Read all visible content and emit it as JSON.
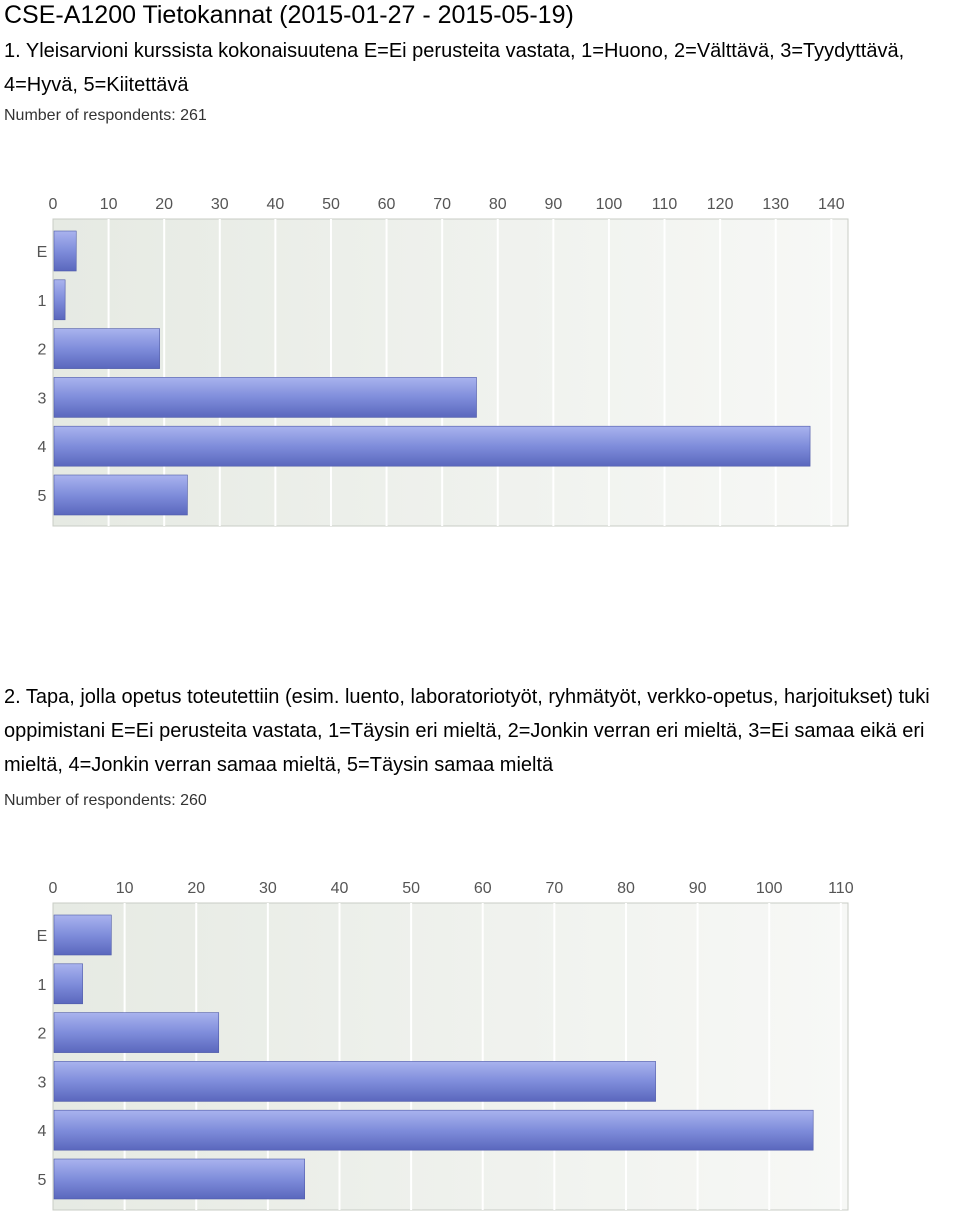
{
  "page_title": "CSE-A1200 Tietokannat (2015-01-27 - 2015-05-19)",
  "questions": [
    {
      "text": "1. Yleisarvioni kurssista kokonaisuutena E=Ei perusteita vastata, 1=Huono, 2=Välttävä, 3=Tyydyttävä, 4=Hyvä, 5=Kiitettävä",
      "respondents": "Number of respondents: 261"
    },
    {
      "text": "2. Tapa, jolla opetus toteutettiin (esim. luento, laboratoriotyöt, ryhmätyöt, verkko-opetus, harjoitukset) tuki oppimistani E=Ei perusteita vastata, 1=Täysin eri mieltä, 2=Jonkin verran eri mieltä, 3=Ei samaa eikä eri mieltä, 4=Jonkin verran samaa mieltä, 5=Täysin samaa mieltä",
      "respondents": "Number of respondents: 260"
    }
  ],
  "colors": {
    "bar_top": "#a9b3ee",
    "bar_mid": "#7f8ddb",
    "bar_bottom": "#5a67bd",
    "plot_bg_left": "#e6eae3",
    "plot_bg_right": "#f7f8f6",
    "grid": "#ffffff",
    "axis_text": "#555555"
  },
  "chart_data": [
    {
      "type": "bar",
      "orientation": "horizontal",
      "categories": [
        "E",
        "1",
        "2",
        "3",
        "4",
        "5"
      ],
      "values": [
        4,
        2,
        19,
        76,
        136,
        24
      ],
      "xlim": [
        0,
        143
      ],
      "x_ticks": [
        0,
        10,
        20,
        30,
        40,
        50,
        60,
        70,
        80,
        90,
        100,
        110,
        120,
        130,
        140
      ],
      "x_tick_labels": [
        "0",
        "10",
        "20",
        "30",
        "40",
        "50",
        "60",
        "70",
        "80",
        "90",
        "100",
        "110",
        "120",
        "130",
        "140"
      ],
      "xaxis_position": "top",
      "grid": true
    },
    {
      "type": "bar",
      "orientation": "horizontal",
      "categories": [
        "E",
        "1",
        "2",
        "3",
        "4",
        "5"
      ],
      "values": [
        8,
        4,
        23,
        84,
        106,
        35
      ],
      "xlim": [
        0,
        111
      ],
      "x_ticks": [
        0,
        10,
        20,
        30,
        40,
        50,
        60,
        70,
        80,
        90,
        100,
        110
      ],
      "x_tick_labels": [
        "0",
        "10",
        "20",
        "30",
        "40",
        "50",
        "60",
        "70",
        "80",
        "90",
        "100",
        "110"
      ],
      "xaxis_position": "top",
      "grid": true
    }
  ]
}
